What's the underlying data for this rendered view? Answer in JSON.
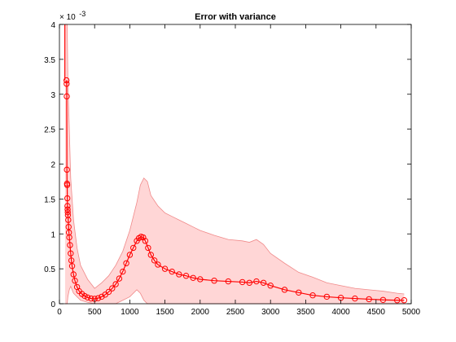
{
  "chart_data": {
    "type": "line",
    "title": "Error with variance",
    "xlabel": "",
    "ylabel": "",
    "y_exponent_base": "× 10",
    "y_exponent_power": "-3",
    "xlim": [
      0,
      5000
    ],
    "ylim": [
      0,
      4
    ],
    "x_ticks": [
      0,
      500,
      1000,
      1500,
      2000,
      2500,
      3000,
      3500,
      4000,
      4500,
      5000
    ],
    "y_ticks": [
      0,
      0.5,
      1,
      1.5,
      2,
      2.5,
      3,
      3.5,
      4
    ],
    "x_tick_labels": [
      "0",
      "500",
      "1000",
      "1500",
      "2000",
      "2500",
      "3000",
      "3500",
      "4000",
      "4500",
      "5000"
    ],
    "y_tick_labels": [
      "0",
      "0.5",
      "1",
      "1.5",
      "2",
      "2.5",
      "3",
      "3.5",
      "4"
    ],
    "grid": false,
    "legend": "none",
    "colors": {
      "series": "#ff0000",
      "band_fill": "#ffd6d6",
      "band_edge": "#f08a8a",
      "axis": "#000000"
    },
    "series": [
      {
        "marker": "circle",
        "x": [
          100,
          102,
          104,
          106,
          108,
          110,
          112,
          114,
          116,
          118,
          120,
          125,
          130,
          135,
          140,
          150,
          160,
          170,
          180,
          200,
          220,
          250,
          280,
          320,
          360,
          400,
          450,
          500,
          550,
          600,
          650,
          700,
          750,
          800,
          850,
          900,
          950,
          1000,
          1050,
          1100,
          1130,
          1160,
          1190,
          1220,
          1260,
          1300,
          1350,
          1400,
          1500,
          1600,
          1700,
          1800,
          1900,
          2000,
          2200,
          2400,
          2600,
          2700,
          2800,
          2900,
          3000,
          3200,
          3400,
          3600,
          3800,
          4000,
          4200,
          4400,
          4600,
          4800,
          4900
        ],
        "y": [
          3.2,
          3.15,
          2.97,
          1.92,
          1.72,
          1.7,
          1.51,
          1.4,
          1.35,
          1.31,
          1.27,
          1.2,
          1.1,
          1.02,
          0.95,
          0.84,
          0.72,
          0.62,
          0.54,
          0.42,
          0.33,
          0.24,
          0.18,
          0.14,
          0.11,
          0.09,
          0.075,
          0.07,
          0.08,
          0.1,
          0.13,
          0.17,
          0.22,
          0.28,
          0.36,
          0.46,
          0.58,
          0.7,
          0.8,
          0.9,
          0.94,
          0.96,
          0.95,
          0.9,
          0.8,
          0.7,
          0.62,
          0.56,
          0.5,
          0.46,
          0.42,
          0.4,
          0.37,
          0.35,
          0.33,
          0.32,
          0.31,
          0.3,
          0.32,
          0.3,
          0.26,
          0.2,
          0.16,
          0.12,
          0.1,
          0.085,
          0.075,
          0.065,
          0.055,
          0.05,
          0.05
        ]
      }
    ],
    "band": {
      "x": [
        80,
        90,
        100,
        110,
        120,
        140,
        160,
        200,
        250,
        300,
        400,
        500,
        600,
        700,
        800,
        900,
        1000,
        1100,
        1150,
        1200,
        1250,
        1300,
        1400,
        1500,
        1600,
        1700,
        1800,
        1900,
        2000,
        2200,
        2400,
        2600,
        2700,
        2800,
        2900,
        3000,
        3200,
        3400,
        3600,
        3800,
        4000,
        4200,
        4400,
        4600,
        4800,
        4900
      ],
      "upper": [
        4,
        4,
        4,
        4,
        3.2,
        2.5,
        1.8,
        1.2,
        0.8,
        0.55,
        0.35,
        0.22,
        0.3,
        0.4,
        0.55,
        0.75,
        1.05,
        1.45,
        1.7,
        1.8,
        1.75,
        1.55,
        1.4,
        1.3,
        1.25,
        1.2,
        1.15,
        1.1,
        1.05,
        0.98,
        0.92,
        0.9,
        0.88,
        0.92,
        0.85,
        0.72,
        0.58,
        0.45,
        0.38,
        0.3,
        0.26,
        0.22,
        0.2,
        0.18,
        0.15,
        0.14
      ],
      "lower": [
        0,
        0,
        0,
        0,
        0.1,
        0.2,
        0.25,
        0.15,
        0.1,
        0.05,
        0.02,
        0,
        0,
        0,
        0,
        0.05,
        0.1,
        0.2,
        0.15,
        0.05,
        0,
        0,
        0,
        0,
        0,
        0,
        0,
        0,
        0,
        0,
        0,
        0,
        0,
        0,
        0,
        0,
        0,
        0,
        0,
        0,
        0,
        0,
        0,
        0,
        0,
        0
      ]
    }
  }
}
